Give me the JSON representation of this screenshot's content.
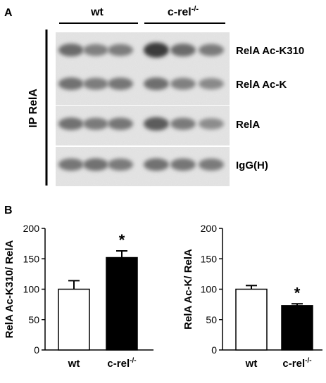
{
  "panel_a": {
    "label": "A",
    "groups": [
      {
        "name": "wt",
        "sup": ""
      },
      {
        "name": "c-rel",
        "sup": "-/-"
      }
    ],
    "ip_label": "IP RelA",
    "blots": [
      {
        "label": "RelA Ac-K310",
        "lanes": [
          0.62,
          0.48,
          0.5,
          0.95,
          0.62,
          0.52
        ]
      },
      {
        "label": "RelA Ac-K",
        "lanes": [
          0.58,
          0.5,
          0.55,
          0.6,
          0.48,
          0.42
        ]
      },
      {
        "label": "RelA",
        "lanes": [
          0.58,
          0.52,
          0.55,
          0.72,
          0.52,
          0.4
        ]
      },
      {
        "label": "IgG(H)",
        "lanes": [
          0.55,
          0.58,
          0.52,
          0.58,
          0.55,
          0.52
        ]
      }
    ]
  },
  "panel_b": {
    "label": "B",
    "colors": {
      "wt": "#ffffff",
      "crel": "#000000"
    }
  },
  "chart_data": [
    {
      "type": "bar",
      "categories": [
        "wt",
        "c-rel-/-"
      ],
      "category_sup": [
        "",
        "-/-"
      ],
      "category_base": [
        "wt",
        "c-rel"
      ],
      "values": [
        100,
        152
      ],
      "errors": [
        14,
        11
      ],
      "significance": [
        "",
        "*"
      ],
      "ylabel": "RelA Ac-K310/ RelA",
      "ylim": [
        0,
        200
      ],
      "yticks": [
        0,
        50,
        100,
        150,
        200
      ],
      "grid": false,
      "legend": "none"
    },
    {
      "type": "bar",
      "categories": [
        "wt",
        "c-rel-/-"
      ],
      "category_sup": [
        "",
        "-/-"
      ],
      "category_base": [
        "wt",
        "c-rel"
      ],
      "values": [
        100,
        73
      ],
      "errors": [
        6,
        3
      ],
      "significance": [
        "",
        "*"
      ],
      "ylabel": "RelA Ac-K/ RelA",
      "ylim": [
        0,
        200
      ],
      "yticks": [
        0,
        50,
        100,
        150,
        200
      ],
      "grid": false,
      "legend": "none"
    }
  ]
}
